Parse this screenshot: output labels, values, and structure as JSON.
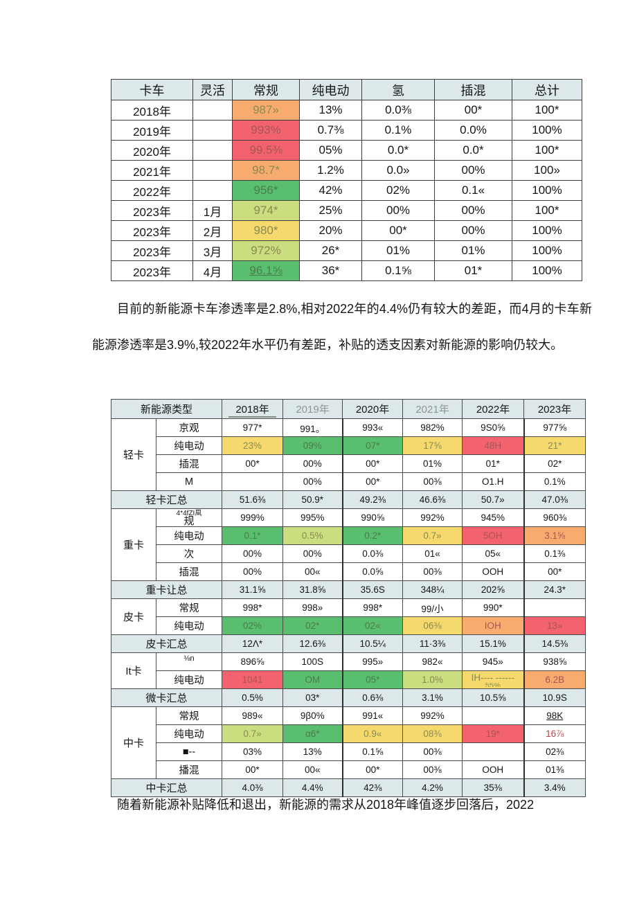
{
  "colors": {
    "header_bg": "#dce8ea",
    "summary_bg": "#dde8ea",
    "orange": "#f8ab6e",
    "red": "#f2636d",
    "green": "#5abe71",
    "yellow_green": "#cade80",
    "yellow": "#f5d96c",
    "olive_text": "#8a8a50",
    "red_dark_text": "#a5565a",
    "green_dark_text": "#4a7d45",
    "red_accent": "#c04541"
  },
  "table1": {
    "headers": [
      "卡车",
      "灵活",
      "常规",
      "纯电动",
      "氢",
      "插混",
      "总计"
    ],
    "rows": [
      [
        "2018年",
        "",
        {
          "t": "987»",
          "c": "og"
        },
        "13%",
        "0.0⅜",
        "00*",
        "100*"
      ],
      [
        "2019年",
        "",
        {
          "t": "993%",
          "c": "r"
        },
        "0.7⅜",
        "0.1%",
        "0.0%",
        "100%"
      ],
      [
        "2020年",
        "",
        {
          "t": "99.5⅜",
          "c": "r"
        },
        "05%",
        "0.0*",
        "0.0*",
        "100*"
      ],
      [
        "2021年",
        "",
        {
          "t": "98.7*",
          "c": "og"
        },
        "1.2%",
        "0.0»",
        "00%",
        "100»"
      ],
      [
        "2022年",
        "",
        {
          "t": "956*",
          "c": "g"
        },
        "42%",
        "02%",
        "0.1«",
        "100%"
      ],
      [
        "2023年",
        "1月",
        {
          "t": "974*",
          "c": "yg"
        },
        "25%",
        "00%",
        "00%",
        "100*"
      ],
      [
        "2023年",
        "2月",
        {
          "t": "980*",
          "c": "y"
        },
        "20%",
        "00*",
        "00%",
        "100%"
      ],
      [
        "2023年",
        "3月",
        {
          "t": "972%",
          "c": "yg"
        },
        "26*",
        "01%",
        "01%",
        "100%"
      ],
      [
        "2023年",
        "4月",
        {
          "t": "96.1⅝",
          "c": "g",
          "u": true
        },
        "36*",
        "0.1⅝",
        "01*",
        "100%"
      ]
    ]
  },
  "paragraphs": {
    "p1": "目前的新能源卡车渗透率是2.8%,相对2022年的4.4%仍有较大的差距，而4月的卡车新能源渗透率是3.9%,较2022年水平仍有差距，补贴的透支因素对新能源的影响仍较大。",
    "p2": "随着新能源补贴降低和退出，新能源的需求从2018年峰值逐步回落后，2022"
  },
  "table2": {
    "type_header": "新能源类型",
    "year_headers": [
      {
        "t": "2018年",
        "u": true
      },
      {
        "t": "2019年",
        "muted": true
      },
      {
        "t": "2020年"
      },
      {
        "t": "2021年",
        "muted": true
      },
      {
        "t": "2022年"
      },
      {
        "t": "2023年"
      }
    ],
    "sections": [
      {
        "group": "轻卡",
        "rows": [
          {
            "label": "京观",
            "cells": [
              "977*",
              "991。",
              "993«",
              "982%",
              "9S0⅝",
              "977⅝"
            ]
          },
          {
            "label": "纯电动",
            "cells": [
              {
                "t": "23%",
                "c": "y"
              },
              {
                "t": "09%",
                "c": "g"
              },
              {
                "t": "07*",
                "c": "g"
              },
              {
                "t": "17⅝",
                "c": "y"
              },
              {
                "t": "48H",
                "c": "r"
              },
              {
                "t": "21*",
                "c": "y"
              }
            ]
          },
          {
            "label": "插混",
            "cells": [
              "00*",
              "00%",
              "00*",
              "01%",
              "01*",
              "02*"
            ]
          },
          {
            "label": "M",
            "cells": [
              "",
              "00%",
              "00*",
              "00⅜",
              "O1.H",
              "0.1%"
            ]
          }
        ],
        "summary": {
          "label": "轻卡汇总",
          "cells": [
            "51.6⅜",
            "50.9*",
            "49.2⅜",
            "46.6⅜",
            "50.7»",
            "47.0⅜"
          ]
        }
      },
      {
        "group": "重卡",
        "rows": [
          {
            "label": "规",
            "label_sup": "4*4fZI凬",
            "cells": [
              "999%",
              "995%",
              "990⅝",
              "992%",
              "945%",
              "960⅜"
            ]
          },
          {
            "label": "纯电动",
            "cells": [
              {
                "t": "0.1*",
                "c": "g"
              },
              {
                "t": "0.5%",
                "c": "yg"
              },
              {
                "t": "0.2*",
                "c": "g"
              },
              {
                "t": "0.7»",
                "c": "y"
              },
              {
                "t": "5OH",
                "c": "r"
              },
              {
                "t": "3.1⅝",
                "c": "or"
              }
            ]
          },
          {
            "label": "次",
            "cells": [
              "00%",
              "00%",
              "0.0⅜",
              "01«",
              "05«",
              "0.1⅜"
            ]
          },
          {
            "label": "插混",
            "cells": [
              "00%",
              "00«",
              "0.0⅝",
              "00⅜",
              "OOH",
              "00*"
            ]
          }
        ],
        "summary": {
          "label": "重卡让总",
          "cells": [
            "31.1⅝",
            "31.8⅝",
            "35.6S",
            "348¼",
            "202⅝",
            "24.3*"
          ]
        }
      },
      {
        "group": "皮卡",
        "rows": [
          {
            "label": "常规",
            "cells": [
              "998*",
              "998»",
              "998*",
              "99/小",
              "990*",
              ""
            ]
          },
          {
            "label": "纯电动",
            "cells": [
              {
                "t": "02%",
                "c": "g"
              },
              {
                "t": "02*",
                "c": "g"
              },
              {
                "t": "02«",
                "c": "g"
              },
              {
                "t": "06⅜",
                "c": "y"
              },
              {
                "t": "IOH",
                "c": "or"
              },
              {
                "t": "13»",
                "c": "r"
              }
            ]
          }
        ],
        "summary": {
          "label": "皮卡汇总",
          "cells": [
            "12Λ*",
            "12.6⅜",
            "10.5¼",
            "11·3⅜",
            "15.1%",
            "14.5⅜"
          ]
        }
      },
      {
        "group": "It卡",
        "rows": [
          {
            "label": "⅛n",
            "small": true,
            "cells": [
              "896⅝",
              "100S",
              "995»",
              "982«",
              "945»",
              "938⅝"
            ]
          },
          {
            "label": "纯电动",
            "cells": [
              {
                "t": "1041",
                "c": "r"
              },
              {
                "t": "OM",
                "c": "g"
              },
              {
                "t": "05*",
                "c": "g"
              },
              {
                "t": "1.0%",
                "c": "yg"
              },
              {
                "t": "IH---- ------",
                "sub": "55%",
                "c": "y"
              },
              {
                "t": "6.2B",
                "c": "or"
              }
            ]
          }
        ],
        "summary": {
          "label": "微卡汇总",
          "cells": [
            "0.5%",
            "03*",
            "0.6⅜",
            "3.1%",
            "10.5⅝",
            "10.9S"
          ]
        }
      },
      {
        "group": "中卡",
        "rows": [
          {
            "label": "常规",
            "cells": [
              "989«",
              "9β0%",
              "991«",
              "992%",
              "",
              {
                "t": "98K",
                "u": true
              }
            ]
          },
          {
            "label": "纯电动",
            "cells": [
              {
                "t": "0.7»",
                "c": "yg"
              },
              {
                "t": "α6*",
                "c": "g"
              },
              {
                "t": "0.9«",
                "c": "y"
              },
              {
                "t": "08⅜",
                "c": "y"
              },
              {
                "t": "19*",
                "c": "r"
              },
              {
                "t": "16⅞",
                "c": "rt"
              }
            ]
          },
          {
            "label": "■--",
            "cells": [
              "03%",
              "13%",
              "0.1⅝",
              "00⅜",
              "",
              "02⅜"
            ]
          },
          {
            "label": "播混",
            "cells": [
              "00*",
              "00«",
              "00*",
              "00⅜",
              "OOH",
              "01⅜"
            ]
          }
        ],
        "summary": {
          "label": "中卡汇总",
          "cells": [
            "4.0⅜",
            "4.4%",
            "42⅜",
            "4.2%",
            "35⅜",
            "3.4%"
          ]
        }
      }
    ]
  }
}
